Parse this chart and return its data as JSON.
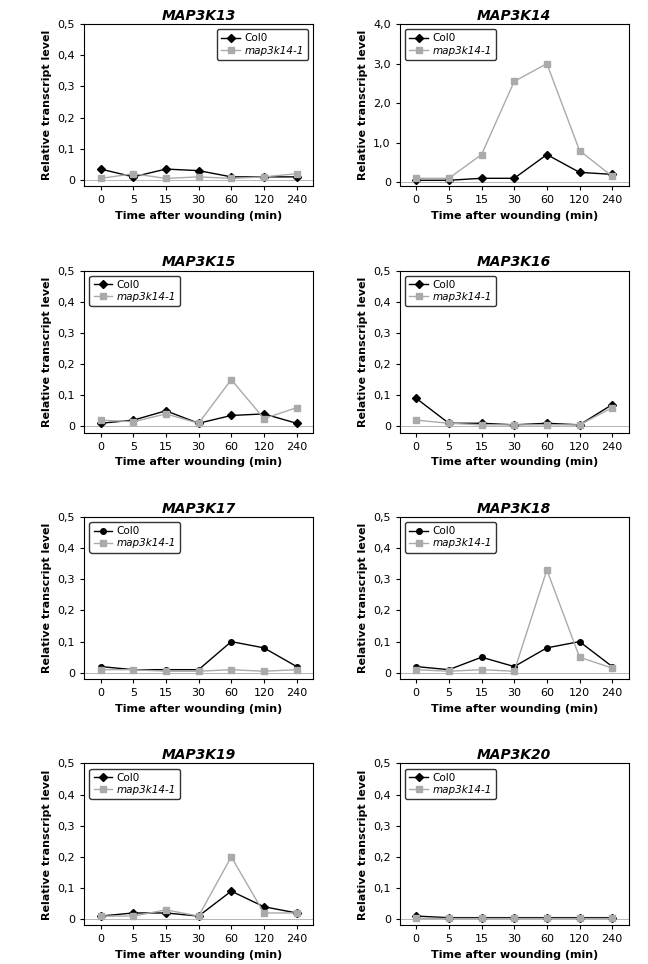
{
  "time_points": [
    0,
    5,
    15,
    30,
    60,
    120,
    240
  ],
  "plots": [
    {
      "title": "MAP3K13",
      "ylim": [
        -0.02,
        0.5
      ],
      "yticks": [
        0,
        0.1,
        0.2,
        0.3,
        0.4,
        0.5
      ],
      "col0": [
        0.035,
        0.01,
        0.035,
        0.03,
        0.01,
        0.01,
        0.01
      ],
      "map3k14": [
        0.005,
        0.02,
        0.005,
        0.01,
        0.005,
        0.01,
        0.02
      ],
      "col0_marker": "D",
      "map3k14_marker": "s",
      "legend_loc": "upper right"
    },
    {
      "title": "MAP3K14",
      "ylim": [
        -0.1,
        4
      ],
      "yticks": [
        0,
        1,
        2,
        3,
        4
      ],
      "col0": [
        0.05,
        0.05,
        0.1,
        0.1,
        0.7,
        0.25,
        0.2
      ],
      "map3k14": [
        0.1,
        0.1,
        0.7,
        2.55,
        3.0,
        0.8,
        0.15
      ],
      "col0_marker": "D",
      "map3k14_marker": "s",
      "legend_loc": "upper left"
    },
    {
      "title": "MAP3K15",
      "ylim": [
        -0.02,
        0.5
      ],
      "yticks": [
        0,
        0.1,
        0.2,
        0.3,
        0.4,
        0.5
      ],
      "col0": [
        0.01,
        0.02,
        0.05,
        0.01,
        0.035,
        0.04,
        0.01
      ],
      "map3k14": [
        0.02,
        0.015,
        0.04,
        0.01,
        0.15,
        0.025,
        0.06
      ],
      "col0_marker": "D",
      "map3k14_marker": "s",
      "legend_loc": "upper left"
    },
    {
      "title": "MAP3K16",
      "ylim": [
        -0.02,
        0.5
      ],
      "yticks": [
        0,
        0.1,
        0.2,
        0.3,
        0.4,
        0.5
      ],
      "col0": [
        0.09,
        0.01,
        0.01,
        0.005,
        0.01,
        0.005,
        0.07
      ],
      "map3k14": [
        0.02,
        0.01,
        0.005,
        0.005,
        0.005,
        0.005,
        0.06
      ],
      "col0_marker": "D",
      "map3k14_marker": "s",
      "legend_loc": "upper left"
    },
    {
      "title": "MAP3K17",
      "ylim": [
        -0.02,
        0.5
      ],
      "yticks": [
        0,
        0.1,
        0.2,
        0.3,
        0.4,
        0.5
      ],
      "col0": [
        0.02,
        0.01,
        0.01,
        0.01,
        0.1,
        0.08,
        0.02
      ],
      "map3k14": [
        0.01,
        0.01,
        0.005,
        0.005,
        0.01,
        0.005,
        0.01
      ],
      "col0_marker": "o",
      "map3k14_marker": "s",
      "legend_loc": "upper left"
    },
    {
      "title": "MAP3K18",
      "ylim": [
        -0.02,
        0.5
      ],
      "yticks": [
        0,
        0.1,
        0.2,
        0.3,
        0.4,
        0.5
      ],
      "col0": [
        0.02,
        0.01,
        0.05,
        0.02,
        0.08,
        0.1,
        0.02
      ],
      "map3k14": [
        0.01,
        0.005,
        0.01,
        0.005,
        0.33,
        0.05,
        0.015
      ],
      "col0_marker": "o",
      "map3k14_marker": "s",
      "legend_loc": "upper left"
    },
    {
      "title": "MAP3K19",
      "ylim": [
        -0.02,
        0.5
      ],
      "yticks": [
        0,
        0.1,
        0.2,
        0.3,
        0.4,
        0.5
      ],
      "col0": [
        0.01,
        0.02,
        0.02,
        0.01,
        0.09,
        0.04,
        0.02
      ],
      "map3k14": [
        0.01,
        0.01,
        0.03,
        0.01,
        0.2,
        0.02,
        0.02
      ],
      "col0_marker": "D",
      "map3k14_marker": "s",
      "legend_loc": "upper left"
    },
    {
      "title": "MAP3K20",
      "ylim": [
        -0.02,
        0.5
      ],
      "yticks": [
        0,
        0.1,
        0.2,
        0.3,
        0.4,
        0.5
      ],
      "col0": [
        0.01,
        0.005,
        0.005,
        0.005,
        0.005,
        0.005,
        0.005
      ],
      "map3k14": [
        0.005,
        0.005,
        0.005,
        0.005,
        0.005,
        0.005,
        0.005
      ],
      "col0_marker": "D",
      "map3k14_marker": "s",
      "legend_loc": "upper left"
    }
  ],
  "col0_color": "#000000",
  "map3k14_color": "#aaaaaa",
  "xlabel": "Time after wounding (min)",
  "ylabel": "Relative transcript level",
  "legend_col0": "Col0",
  "legend_map3k14": "map3k14-1",
  "background_color": "#ffffff",
  "tick_label_fontsize": 8,
  "axis_label_fontsize": 8,
  "title_fontsize": 10
}
